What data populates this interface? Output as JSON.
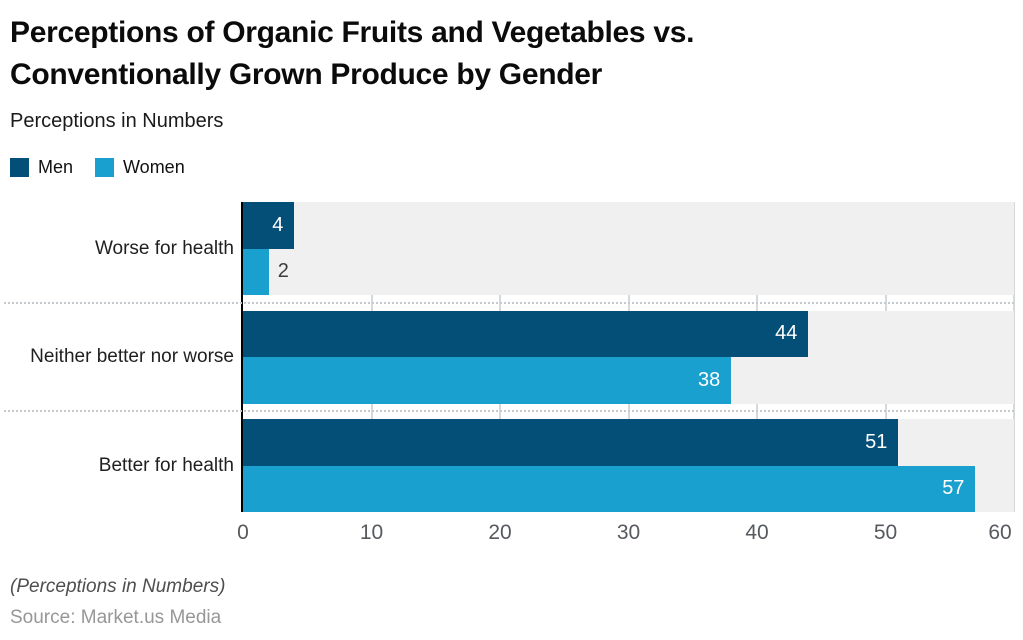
{
  "header": {
    "title_lines": [
      "Perceptions of Organic Fruits and Vegetables vs.",
      "Conventionally Grown Produce by Gender"
    ],
    "title": "Perceptions of Organic Fruits and Vegetables vs. Conventionally Grown Produce by Gender",
    "subtitle": "Perceptions in Numbers"
  },
  "legend": [
    {
      "label": "Men",
      "color": "#034f77"
    },
    {
      "label": "Women",
      "color": "#1aa0cf"
    }
  ],
  "chart_data": {
    "type": "bar",
    "orientation": "horizontal",
    "title": "Perceptions of Organic Fruits and Vegetables vs. Conventionally Grown Produce by Gender",
    "subtitle": "Perceptions in Numbers",
    "categories": [
      "Worse for health",
      "Neither better nor worse",
      "Better for health"
    ],
    "series": [
      {
        "name": "Men",
        "color": "#034f77",
        "values": [
          4,
          44,
          51
        ]
      },
      {
        "name": "Women",
        "color": "#1aa0cf",
        "values": [
          2,
          38,
          57
        ]
      }
    ],
    "xlim": [
      0,
      60
    ],
    "xticks": [
      0,
      10,
      20,
      30,
      40,
      50,
      60
    ],
    "grid": true,
    "plot_background": "#f0f0f0",
    "gridline_color": "#d6d9da",
    "legend_position": "top-left",
    "value_labels": true
  },
  "footer": {
    "note": "(Perceptions in Numbers)",
    "source": "Source: Market.us Media"
  }
}
